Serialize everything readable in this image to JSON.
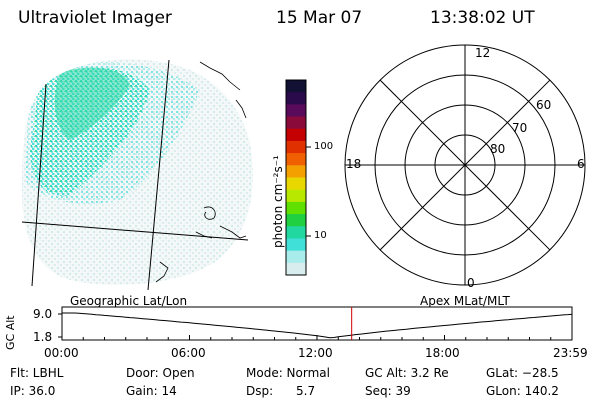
{
  "header": {
    "instrument": "Ultraviolet Imager",
    "date": "15 Mar 07",
    "time": "13:38:02 UT"
  },
  "colorbar": {
    "unit_label": "photon cm⁻²s⁻¹",
    "ticks": [
      "100",
      "10"
    ],
    "colors": [
      "#111133",
      "#2a0a4a",
      "#5a0a5a",
      "#8a0a3a",
      "#c40000",
      "#e03000",
      "#f06000",
      "#f3a000",
      "#e8d800",
      "#b8e800",
      "#60e000",
      "#20d040",
      "#20d8a0",
      "#40e0d8",
      "#a8ecec",
      "#d8eeee"
    ]
  },
  "polar": {
    "mlt_labels": [
      "12",
      "18",
      "6",
      "0"
    ],
    "mlat_labels": [
      "60",
      "70",
      "80"
    ]
  },
  "image_panel": {
    "left_label": "Geographic Lat/Lon",
    "right_label": "Apex MLat/MLT"
  },
  "altitude_plot": {
    "ylabel": "GC Alt",
    "yticks": [
      "9.0",
      "1.8"
    ],
    "xticks": [
      "00:00",
      "06:00",
      "12:00",
      "18:00",
      "23:59"
    ],
    "current_time_fraction": 0.568
  },
  "info": {
    "flt": "Flt: LBHL",
    "ip": "IP: 36.0",
    "door": "Door: Open",
    "gain": "Gain: 14",
    "mode": "Mode: Normal",
    "dsp_label": "Dsp:",
    "dsp_value": "5.7",
    "gc_alt": "GC Alt: 3.2 Re",
    "seq": "Seq: 39",
    "glat": "GLat: −28.5",
    "glon": "GLon: 140.2"
  }
}
